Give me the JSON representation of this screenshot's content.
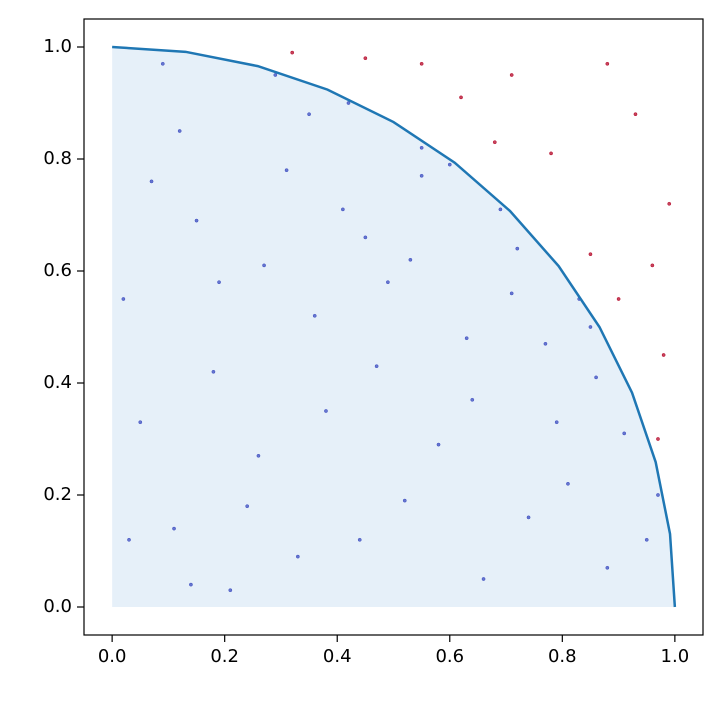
{
  "chart_data": {
    "type": "scatter",
    "xlim": [
      -0.05,
      1.05
    ],
    "ylim": [
      -0.05,
      1.05
    ],
    "xticks": [
      {
        "value": 0,
        "label": "0.0"
      },
      0.2,
      0.4,
      0.6,
      0.8,
      {
        "value": 1,
        "label": "1.0"
      }
    ],
    "yticks": [
      {
        "value": 0,
        "label": "0.0"
      },
      0.2,
      0.4,
      0.6,
      0.8,
      {
        "value": 1,
        "label": "1.0"
      }
    ],
    "series": [
      {
        "color": "#3b4cc0",
        "x": [
          0.12,
          0.05,
          0.27,
          0.44,
          0.63,
          0.81,
          0.35,
          0.72,
          0.18,
          0.55,
          0.91,
          0.09,
          0.38,
          0.66,
          0.24,
          0.49,
          0.77,
          0.15,
          0.58,
          0.86,
          0.31,
          0.02,
          0.69,
          0.42,
          0.95,
          0.21,
          0.53,
          0.74,
          0.11,
          0.36,
          0.6,
          0.83,
          0.29,
          0.47,
          0.07,
          0.64,
          0.88,
          0.19,
          0.41,
          0.79,
          0.97,
          0.26,
          0.52,
          0.14,
          0.71,
          0.33,
          0.55,
          0.03,
          0.45,
          0.85
        ],
        "y": [
          0.85,
          0.33,
          0.61,
          0.12,
          0.48,
          0.22,
          0.88,
          0.64,
          0.42,
          0.77,
          0.31,
          0.97,
          0.35,
          0.05,
          0.18,
          0.58,
          0.47,
          0.69,
          0.29,
          0.41,
          0.78,
          0.55,
          0.71,
          0.9,
          0.12,
          0.03,
          0.62,
          0.16,
          0.14,
          0.52,
          0.79,
          0.55,
          0.95,
          0.43,
          0.76,
          0.37,
          0.07,
          0.58,
          0.71,
          0.33,
          0.2,
          0.27,
          0.19,
          0.04,
          0.56,
          0.09,
          0.82,
          0.12,
          0.66,
          0.5
        ]
      },
      {
        "color": "#b40426",
        "x": [
          0.93,
          0.71,
          0.85,
          0.98,
          0.62,
          0.45,
          0.99,
          0.78,
          0.9,
          0.97,
          0.55,
          0.88,
          0.68,
          0.32,
          0.96
        ],
        "y": [
          0.88,
          0.95,
          0.63,
          0.45,
          0.91,
          0.98,
          0.72,
          0.81,
          0.55,
          0.3,
          0.97,
          0.97,
          0.83,
          0.99,
          0.61
        ]
      }
    ],
    "line": {
      "color": "#1f77b4",
      "fill": "#e6f0f9",
      "x": [
        0,
        0.1305,
        0.2588,
        0.3827,
        0.5,
        0.6088,
        0.7071,
        0.7934,
        0.866,
        0.9239,
        0.9659,
        0.9914,
        1
      ],
      "y": [
        1,
        0.9914,
        0.9659,
        0.9239,
        0.866,
        0.7934,
        0.7071,
        0.6088,
        0.5,
        0.3827,
        0.2588,
        0.1305,
        0
      ]
    }
  }
}
